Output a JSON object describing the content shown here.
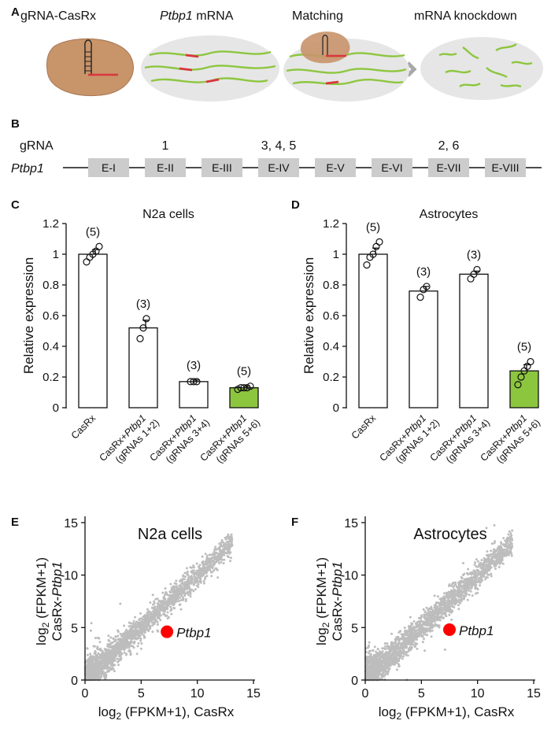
{
  "colors": {
    "green": "#8cc63f",
    "mrna_green": "#8dc63f",
    "mrna_red": "#d9363e",
    "scatter_gray": "#bdbdbd",
    "highlight_red": "#ff0000",
    "exon_gray": "#cccccc",
    "cell_bg": "#e6e6e6",
    "cas_brown": "#c8946a"
  },
  "panelA": {
    "letter": "A",
    "labels": [
      "gRNA-CasRx",
      "Ptbp1 mRNA",
      "Matching",
      "mRNA knockdown"
    ],
    "label_italic_part": "Ptbp1",
    "label_plain_part": " mRNA"
  },
  "panelB": {
    "letter": "B",
    "row_gRNA": "gRNA",
    "row_gene": "Ptbp1",
    "exons": [
      "E-I",
      "E-II",
      "E-III",
      "E-IV",
      "E-V",
      "E-VI",
      "E-VII",
      "E-VIII"
    ],
    "grna_marks": [
      {
        "exon_index": 1,
        "text": "1"
      },
      {
        "exon_index": 3,
        "text": "3, 4, 5"
      },
      {
        "exon_index": 6,
        "text": "2, 6"
      }
    ]
  },
  "panelC": {
    "letter": "C"
  },
  "panelD": {
    "letter": "D"
  },
  "panelE": {
    "letter": "E"
  },
  "panelF": {
    "letter": "F"
  },
  "chart_data": [
    {
      "type": "bar",
      "title": "N2a cells",
      "ylabel": "Relative expression",
      "ylim": [
        0,
        1.2
      ],
      "yticks": [
        "0",
        "0.2",
        "0.4",
        "0.6",
        "0.8",
        "1",
        "1.2"
      ],
      "categories": [
        {
          "line1": "CasRx",
          "line1_italic": "",
          "line2": ""
        },
        {
          "line1": "CasRx+",
          "line1_italic": "Ptbp1",
          "line2": "(gRNAs 1+2)"
        },
        {
          "line1": "CasRx+",
          "line1_italic": "Ptbp1",
          "line2": "(gRNAs 3+4)"
        },
        {
          "line1": "CasRx+",
          "line1_italic": "Ptbp1",
          "line2": "(gRNAs 5+6)"
        }
      ],
      "values": [
        1.0,
        0.52,
        0.17,
        0.13
      ],
      "errors": [
        0.03,
        0.05,
        0.01,
        0.01
      ],
      "n_labels": [
        "(5)",
        "(3)",
        "(3)",
        "(5)"
      ],
      "points": [
        [
          0.95,
          0.98,
          1.0,
          1.02,
          1.05
        ],
        [
          0.45,
          0.52,
          0.58
        ],
        [
          0.17,
          0.17,
          0.17
        ],
        [
          0.12,
          0.13,
          0.13,
          0.13,
          0.14
        ]
      ],
      "highlight_index": 3
    },
    {
      "type": "bar",
      "title": "Astrocytes",
      "ylabel": "Relative expression",
      "ylim": [
        0,
        1.2
      ],
      "yticks": [
        "0",
        "0.2",
        "0.4",
        "0.6",
        "0.8",
        "1",
        "1.2"
      ],
      "categories": [
        {
          "line1": "CasRx",
          "line1_italic": "",
          "line2": ""
        },
        {
          "line1": "CasRx+",
          "line1_italic": "Ptbp1",
          "line2": "(gRNAs 1+2)"
        },
        {
          "line1": "CasRx+",
          "line1_italic": "Ptbp1",
          "line2": "(gRNAs 3+4)"
        },
        {
          "line1": "CasRx+",
          "line1_italic": "Ptbp1",
          "line2": "(gRNAs 5+6)"
        }
      ],
      "values": [
        1.0,
        0.76,
        0.87,
        0.24
      ],
      "errors": [
        0.04,
        0.03,
        0.02,
        0.04
      ],
      "n_labels": [
        "(5)",
        "(3)",
        "(3)",
        "(5)"
      ],
      "points": [
        [
          0.93,
          0.98,
          1.0,
          1.05,
          1.08
        ],
        [
          0.72,
          0.77,
          0.79
        ],
        [
          0.84,
          0.87,
          0.9
        ],
        [
          0.15,
          0.2,
          0.24,
          0.27,
          0.3
        ]
      ],
      "highlight_index": 3
    },
    {
      "type": "scatter",
      "title": "N2a cells",
      "xlabel_prefix": "log",
      "xlabel_sub": "2",
      "xlabel_suffix": " (FPKM+1), CasRx",
      "ylabel_line1_prefix": "log",
      "ylabel_line1_sub": "2",
      "ylabel_line1_suffix": " (FPKM+1)",
      "ylabel_line2_plain": "CasRx-",
      "ylabel_line2_italic": "Ptbp1",
      "xlim": [
        0,
        15
      ],
      "ylim": [
        0,
        15
      ],
      "xticks": [
        "0",
        "5",
        "10",
        "15"
      ],
      "yticks": [
        "0",
        "5",
        "10",
        "15"
      ],
      "highlight": {
        "label": "Ptbp1",
        "x": 7.3,
        "y": 4.6
      },
      "trend": {
        "spread": 0.55,
        "n": 2600
      }
    },
    {
      "type": "scatter",
      "title": "Astrocytes",
      "xlabel_prefix": "log",
      "xlabel_sub": "2",
      "xlabel_suffix": " (FPKM+1), CasRx",
      "ylabel_line1_prefix": "log",
      "ylabel_line1_sub": "2",
      "ylabel_line1_suffix": " (FPKM+1)",
      "ylabel_line2_plain": "CasRx-",
      "ylabel_line2_italic": "Ptbp1",
      "xlim": [
        0,
        15
      ],
      "ylim": [
        0,
        15
      ],
      "xticks": [
        "0",
        "5",
        "10",
        "15"
      ],
      "yticks": [
        "0",
        "5",
        "10",
        "15"
      ],
      "highlight": {
        "label": "Ptbp1",
        "x": 7.5,
        "y": 4.8
      },
      "trend": {
        "spread": 0.6,
        "n": 2600
      }
    }
  ]
}
